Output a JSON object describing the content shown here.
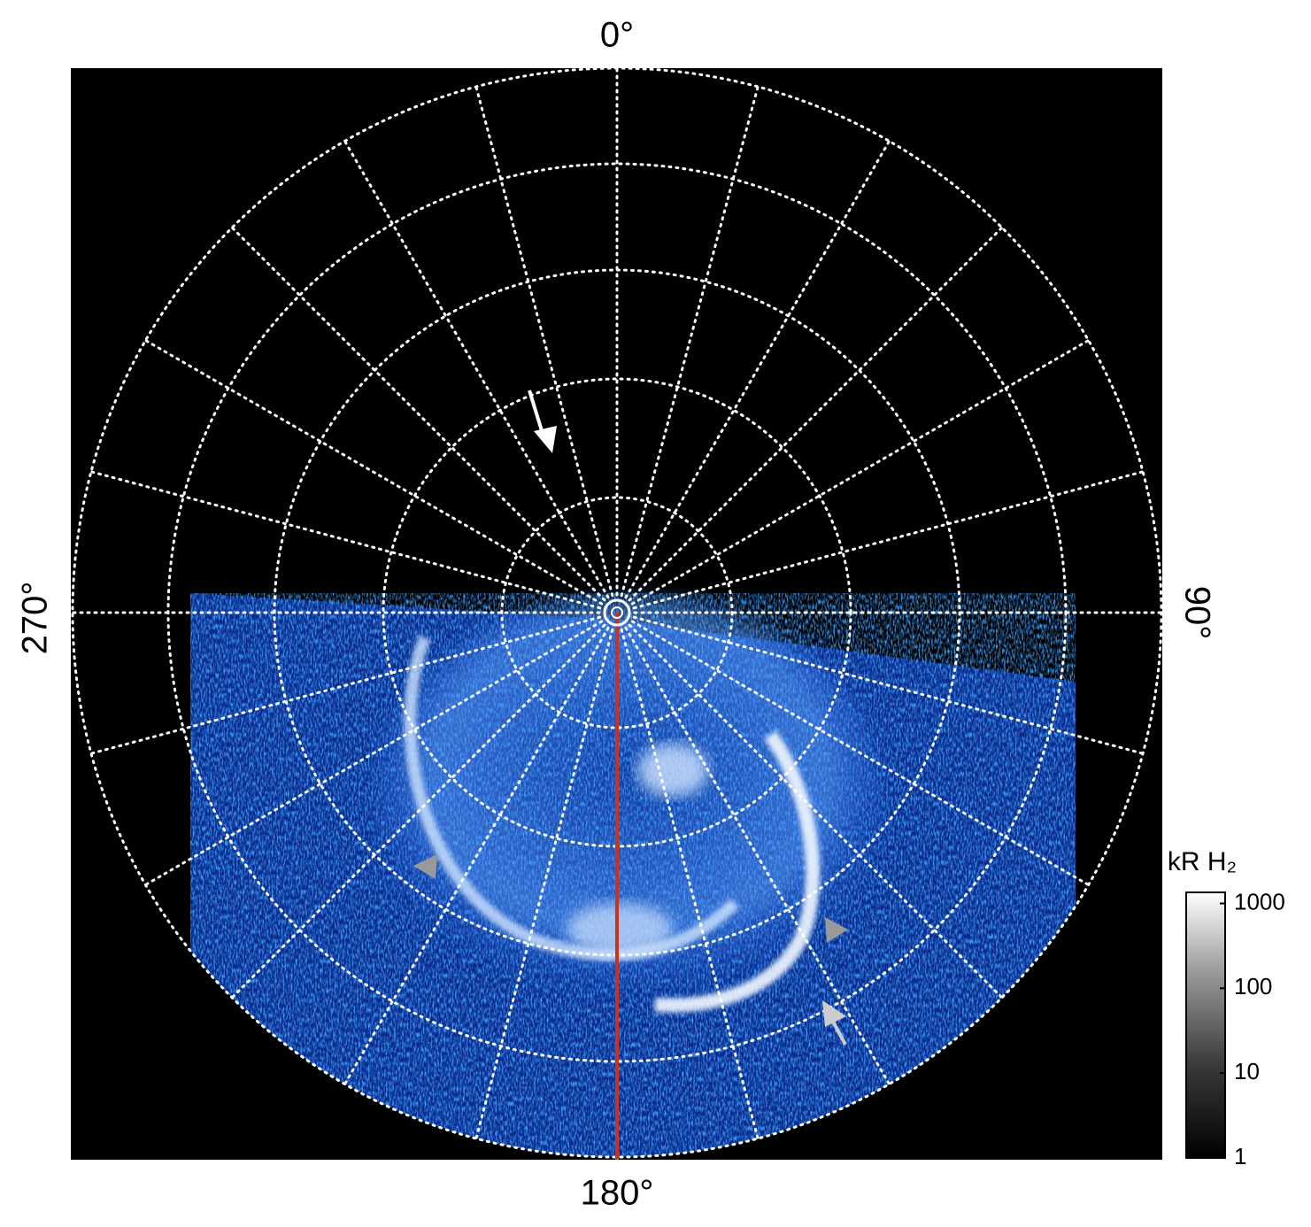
{
  "axis_labels": {
    "top": "0°",
    "right": "90°",
    "bottom": "180°",
    "left": "270°"
  },
  "colorbar": {
    "title": "kR H₂",
    "scale": "log",
    "lim": [
      1,
      1350
    ],
    "ticks": [
      1,
      10,
      100,
      1000
    ]
  }
}
